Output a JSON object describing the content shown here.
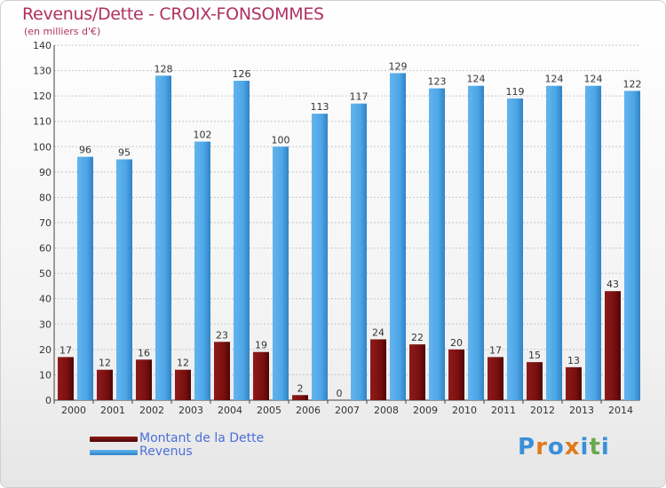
{
  "chart_data": {
    "type": "bar",
    "title": "Revenus/Dette - CROIX-FONSOMMES",
    "subtitle": "(en milliers d'€)",
    "xlabel": "",
    "ylabel": "",
    "ylim": [
      0,
      140
    ],
    "yticks": [
      0,
      10,
      20,
      30,
      40,
      50,
      60,
      70,
      80,
      90,
      100,
      110,
      120,
      130,
      140
    ],
    "grid": true,
    "legend_position": "bottom-left",
    "categories": [
      "2000",
      "2001",
      "2002",
      "2003",
      "2004",
      "2005",
      "2006",
      "2007",
      "2008",
      "2009",
      "2010",
      "2011",
      "2012",
      "2013",
      "2014"
    ],
    "series": [
      {
        "name": "Montant de la Dette",
        "color": "#7a1010",
        "values": [
          17,
          12,
          16,
          12,
          23,
          19,
          2,
          0,
          24,
          22,
          20,
          17,
          15,
          13,
          43
        ]
      },
      {
        "name": "Revenus",
        "color": "#4ea6e6",
        "values": [
          96,
          95,
          128,
          102,
          126,
          100,
          113,
          117,
          129,
          123,
          124,
          119,
          124,
          124,
          122
        ]
      }
    ]
  },
  "logo": {
    "text": "Proxiti",
    "letters": [
      "P",
      "r",
      "o",
      "x",
      "i",
      "t",
      "i"
    ],
    "colors": [
      "#3a8fd8",
      "#e07a1e",
      "#3a8fd8",
      "#e07a1e",
      "#3a8fd8",
      "#6aa84f",
      "#3a8fd8"
    ]
  }
}
